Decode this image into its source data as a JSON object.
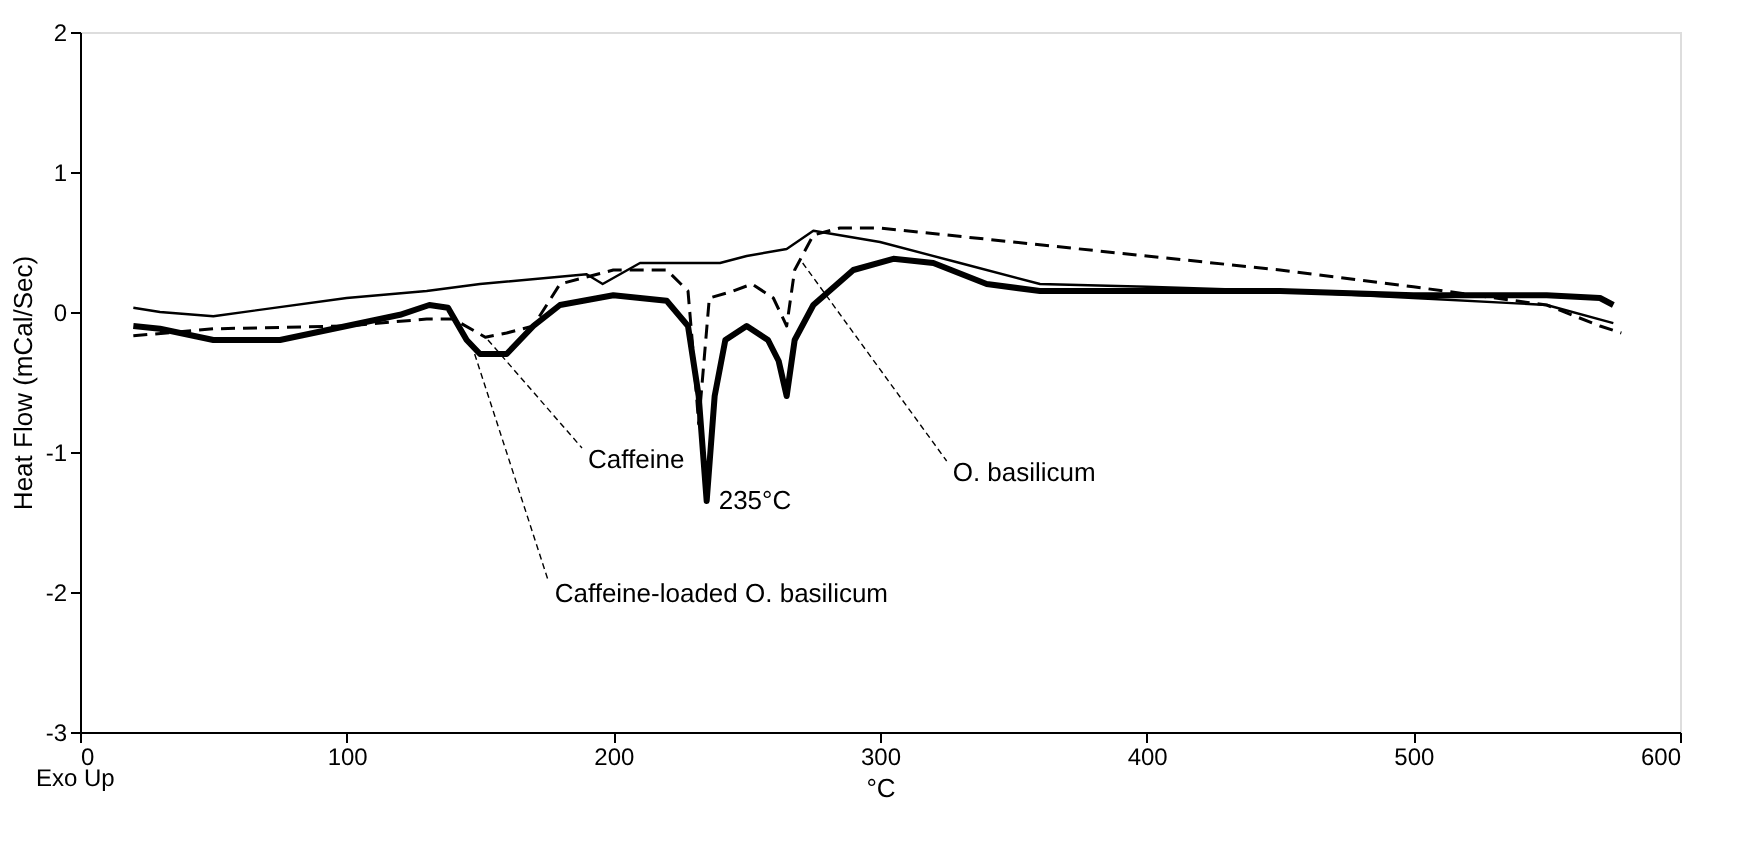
{
  "chart_data": {
    "type": "line",
    "xlabel": "°C",
    "ylabel": "Heat Flow (mCal/Sec)",
    "xlim": [
      0,
      600
    ],
    "ylim": [
      -3,
      2
    ],
    "xticks": [
      0,
      100,
      200,
      300,
      400,
      500,
      600
    ],
    "yticks": [
      -3,
      -2,
      -1,
      0,
      1,
      2
    ],
    "grid": false,
    "marker": "none",
    "series": [
      {
        "color": "#000000",
        "line_style": "solid",
        "x": [
          20,
          30,
          50,
          75,
          100,
          120,
          131,
          138,
          145,
          150,
          160,
          170,
          180,
          200,
          220,
          228,
          232,
          235,
          238,
          242,
          250,
          258,
          262,
          265,
          268,
          275,
          290,
          305,
          320,
          340,
          360,
          400,
          450,
          500,
          550,
          570,
          575
        ],
        "values": [
          -0.1,
          -0.12,
          -0.2,
          -0.2,
          -0.1,
          -0.02,
          0.05,
          0.03,
          -0.2,
          -0.3,
          -0.3,
          -0.1,
          0.05,
          0.12,
          0.08,
          -0.1,
          -0.6,
          -1.35,
          -0.6,
          -0.2,
          -0.1,
          -0.2,
          -0.35,
          -0.6,
          -0.2,
          0.05,
          0.3,
          0.38,
          0.35,
          0.2,
          0.15,
          0.15,
          0.15,
          0.12,
          0.12,
          0.1,
          0.05
        ]
      },
      {
        "color": "#000000",
        "line_style": "dashed",
        "x": [
          20,
          50,
          100,
          130,
          140,
          152,
          160,
          170,
          180,
          200,
          220,
          228,
          230,
          232,
          236,
          245,
          252,
          260,
          265,
          268,
          275,
          285,
          300,
          350,
          400,
          450,
          500,
          550,
          570,
          578
        ],
        "values": [
          -0.17,
          -0.12,
          -0.1,
          -0.05,
          -0.05,
          -0.18,
          -0.15,
          -0.1,
          0.2,
          0.3,
          0.3,
          0.15,
          -0.3,
          -0.8,
          0.1,
          0.15,
          0.2,
          0.1,
          -0.1,
          0.3,
          0.55,
          0.6,
          0.6,
          0.5,
          0.4,
          0.3,
          0.18,
          0.05,
          -0.1,
          -0.15
        ]
      },
      {
        "color": "#000000",
        "line_style": "solid",
        "x": [
          20,
          30,
          50,
          100,
          130,
          150,
          190,
          196,
          210,
          230,
          240,
          250,
          265,
          275,
          300,
          330,
          360,
          400,
          450,
          500,
          550,
          575
        ],
        "values": [
          0.03,
          0.0,
          -0.03,
          0.1,
          0.15,
          0.2,
          0.27,
          0.2,
          0.35,
          0.35,
          0.35,
          0.4,
          0.45,
          0.58,
          0.5,
          0.35,
          0.2,
          0.18,
          0.15,
          0.1,
          0.05,
          -0.08
        ]
      }
    ],
    "annotations": [
      {
        "text": "Caffeine",
        "x": 153,
        "y": -0.2
      },
      {
        "text": "Caffeine-loaded O. basilicum",
        "x": 148,
        "y": -0.3
      },
      {
        "text": "O. basilicum",
        "x": 271,
        "y": 0.35
      },
      {
        "text": "235°C",
        "x": 235,
        "y": -1.35
      },
      "Exo Up"
    ]
  }
}
